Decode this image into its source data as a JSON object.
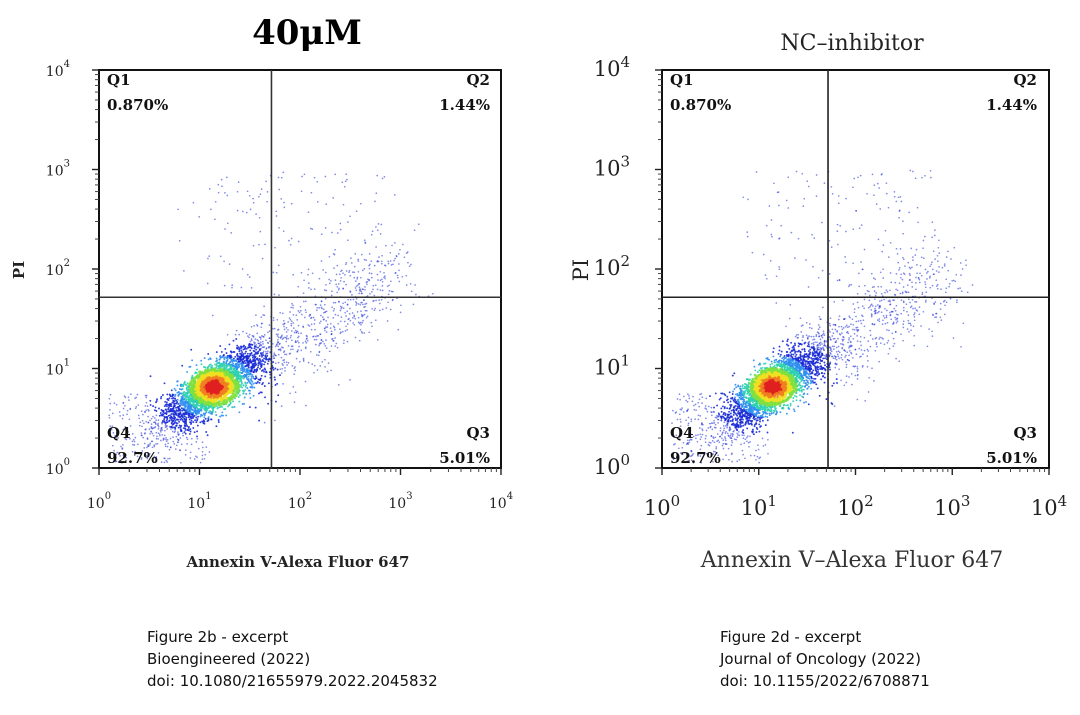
{
  "chart_data": [
    {
      "type": "scatter",
      "title": "40μM",
      "xlabel": "Annexin V-Alexa Fluor 647",
      "ylabel": "PI",
      "x_scale": "log",
      "y_scale": "log",
      "xlim": [
        1,
        10000
      ],
      "ylim": [
        1,
        10000
      ],
      "x_ticks": [
        {
          "value": 1,
          "base": "10",
          "exp": "0"
        },
        {
          "value": 10,
          "base": "10",
          "exp": "1"
        },
        {
          "value": 100,
          "base": "10",
          "exp": "2"
        },
        {
          "value": 1000,
          "base": "10",
          "exp": "3"
        },
        {
          "value": 10000,
          "base": "10",
          "exp": "4"
        }
      ],
      "y_ticks": [
        {
          "value": 1,
          "base": "10",
          "exp": "0"
        },
        {
          "value": 10,
          "base": "10",
          "exp": "1"
        },
        {
          "value": 100,
          "base": "10",
          "exp": "2"
        },
        {
          "value": 1000,
          "base": "10",
          "exp": "3"
        },
        {
          "value": 10000,
          "base": "10",
          "exp": "4"
        }
      ],
      "gates": {
        "x": 52,
        "y": 52
      },
      "quadrants": [
        {
          "id": "Q1",
          "position": "top-left",
          "value": "0.870%"
        },
        {
          "id": "Q2",
          "position": "top-right",
          "value": "1.44%"
        },
        {
          "id": "Q3",
          "position": "bottom-right",
          "value": "5.01%"
        },
        {
          "id": "Q4",
          "position": "bottom-left",
          "value": "92.7%"
        }
      ],
      "density_center": {
        "x": 14,
        "y": 6.5
      },
      "colormap": [
        "#1a2bd6",
        "#2f8ff0",
        "#2fd0b0",
        "#7fe040",
        "#f0e020",
        "#f08020",
        "#e02020"
      ]
    },
    {
      "type": "scatter",
      "title": "NC–inhibitor",
      "xlabel": "Annexin V–Alexa Fluor 647",
      "ylabel": "PI",
      "x_scale": "log",
      "y_scale": "log",
      "xlim": [
        1,
        10000
      ],
      "ylim": [
        1,
        10000
      ],
      "x_ticks": [
        {
          "value": 1,
          "base": "10",
          "exp": "0"
        },
        {
          "value": 10,
          "base": "10",
          "exp": "1"
        },
        {
          "value": 100,
          "base": "10",
          "exp": "2"
        },
        {
          "value": 1000,
          "base": "10",
          "exp": "3"
        },
        {
          "value": 10000,
          "base": "10",
          "exp": "4"
        }
      ],
      "y_ticks": [
        {
          "value": 1,
          "base": "10",
          "exp": "0"
        },
        {
          "value": 10,
          "base": "10",
          "exp": "1"
        },
        {
          "value": 100,
          "base": "10",
          "exp": "2"
        },
        {
          "value": 1000,
          "base": "10",
          "exp": "3"
        },
        {
          "value": 10000,
          "base": "10",
          "exp": "4"
        }
      ],
      "gates": {
        "x": 52,
        "y": 52
      },
      "quadrants": [
        {
          "id": "Q1",
          "position": "top-left",
          "value": "0.870%"
        },
        {
          "id": "Q2",
          "position": "top-right",
          "value": "1.44%"
        },
        {
          "id": "Q3",
          "position": "bottom-right",
          "value": "5.01%"
        },
        {
          "id": "Q4",
          "position": "bottom-left",
          "value": "92.7%"
        }
      ],
      "density_center": {
        "x": 14,
        "y": 6.5
      },
      "colormap": [
        "#1a2bd6",
        "#2f8ff0",
        "#2fd0b0",
        "#7fe040",
        "#f0e020",
        "#f08020",
        "#e02020"
      ]
    }
  ],
  "captions": [
    {
      "line1": "Figure 2b - excerpt",
      "line2": "Bioengineered (2022)",
      "line3": "doi: 10.1080/21655979.2022.2045832"
    },
    {
      "line1": "Figure 2d - excerpt",
      "line2": "Journal of Oncology (2022)",
      "line3": "doi: 10.1155/2022/6708871"
    }
  ]
}
